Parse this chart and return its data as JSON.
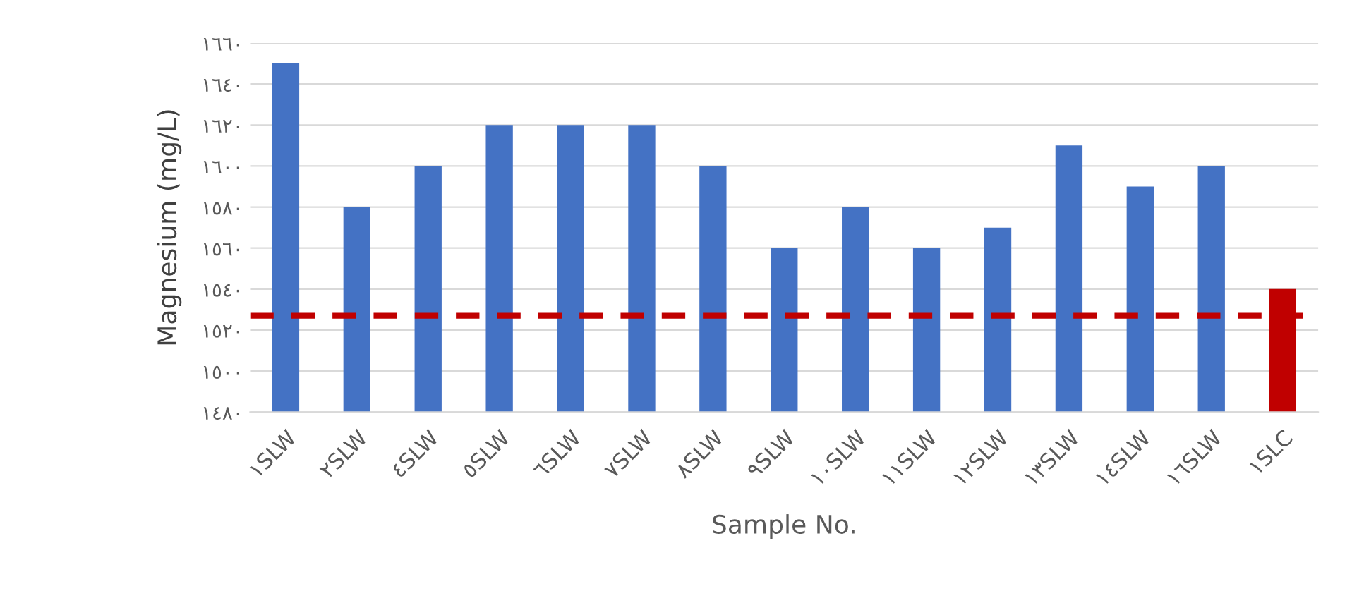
{
  "chart_data": {
    "type": "bar",
    "xlabel": "Sample No.",
    "ylabel": "Magnesium (mg/L)",
    "categories": [
      "١SLW",
      "٢SLW",
      "٤SLW",
      "٥SLW",
      "٦SLW",
      "٧SLW",
      "٨SLW",
      "٩SLW",
      "١٠SLW",
      "١١SLW",
      "١٢SLW",
      "١٣SLW",
      "١٤SLW",
      "١٦SLW",
      "١SLC"
    ],
    "values": [
      1650,
      1580,
      1600,
      1620,
      1620,
      1620,
      1600,
      1560,
      1580,
      1560,
      1570,
      1610,
      1590,
      1600,
      1540
    ],
    "colors": [
      "#4472c4",
      "#4472c4",
      "#4472c4",
      "#4472c4",
      "#4472c4",
      "#4472c4",
      "#4472c4",
      "#4472c4",
      "#4472c4",
      "#4472c4",
      "#4472c4",
      "#4472c4",
      "#4472c4",
      "#4472c4",
      "#c00000"
    ],
    "ylim": [
      1480,
      1660
    ],
    "yticks": [
      {
        "value": 1480,
        "label": "١٤٨٠"
      },
      {
        "value": 1500,
        "label": "١٥٠٠"
      },
      {
        "value": 1520,
        "label": "١٥٢٠"
      },
      {
        "value": 1540,
        "label": "١٥٤٠"
      },
      {
        "value": 1560,
        "label": "١٥٦٠"
      },
      {
        "value": 1580,
        "label": "١٥٨٠"
      },
      {
        "value": 1600,
        "label": "١٦٠٠"
      },
      {
        "value": 1620,
        "label": "١٦٢٠"
      },
      {
        "value": 1640,
        "label": "١٦٤٠"
      },
      {
        "value": 1660,
        "label": "١٦٦٠"
      }
    ],
    "ref_lines": [
      {
        "axis": "y",
        "value": 1527,
        "color": "#c00000",
        "line_style": "dashed"
      }
    ],
    "grid": "y"
  }
}
